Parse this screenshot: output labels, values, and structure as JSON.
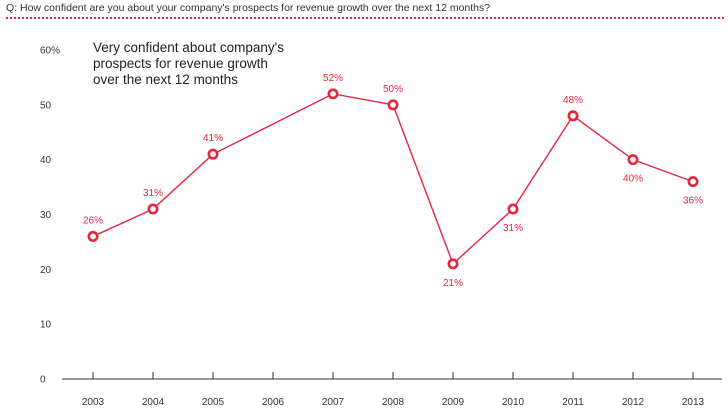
{
  "question": "Q: How confident are you about your company's prospects for revenue growth over the next 12 months?",
  "colors": {
    "accent": "#e3273e",
    "axis": "#333333"
  },
  "chart_data": {
    "type": "line",
    "title": "Very confident about company's prospects for revenue growth over the next 12 months",
    "title_lines": [
      "Very confident about company's",
      "prospects for revenue growth",
      "over the next 12 months"
    ],
    "categories": [
      "2003",
      "2004",
      "2005",
      "2006",
      "2007",
      "2008",
      "2009",
      "2010",
      "2011",
      "2012",
      "2013"
    ],
    "series": [
      {
        "name": "Very confident",
        "x": [
          "2003",
          "2004",
          "2005",
          "2007",
          "2008",
          "2009",
          "2010",
          "2011",
          "2012",
          "2013"
        ],
        "values": [
          26,
          31,
          41,
          52,
          50,
          21,
          31,
          48,
          40,
          36
        ],
        "labels": [
          "26%",
          "31%",
          "41%",
          "52%",
          "50%",
          "21%",
          "31%",
          "48%",
          "40%",
          "36%"
        ],
        "label_side": [
          "above",
          "above",
          "above",
          "above",
          "above",
          "below",
          "below",
          "above",
          "below",
          "below"
        ]
      }
    ],
    "yticks": [
      0,
      10,
      20,
      30,
      40,
      50,
      60
    ],
    "ytick_labels": [
      "0",
      "10",
      "20",
      "30",
      "40",
      "50",
      "60%"
    ],
    "ylim": [
      0,
      60
    ],
    "xlabel": "",
    "ylabel": "",
    "grid": false
  }
}
